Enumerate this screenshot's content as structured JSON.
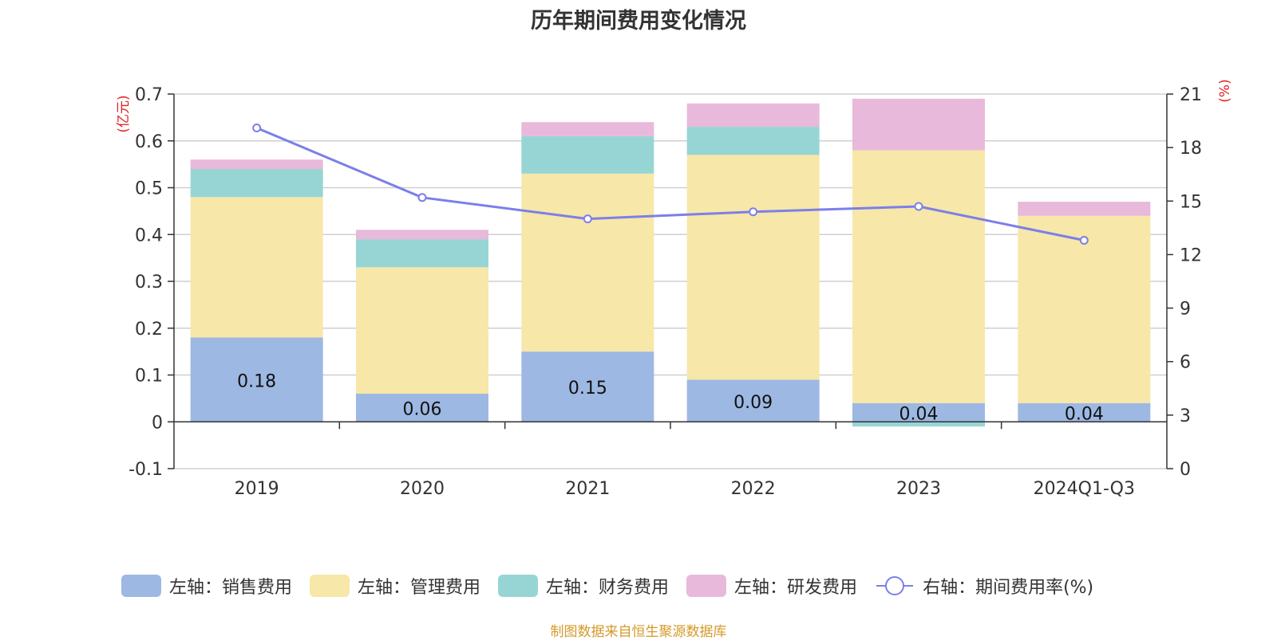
{
  "title": "历年期间费用变化情况",
  "footer": "制图数据来自恒生聚源数据库",
  "chart_data": {
    "type": "bar",
    "stacked": true,
    "categories": [
      "2019",
      "2020",
      "2021",
      "2022",
      "2023",
      "2024Q1-Q3"
    ],
    "left_axis": {
      "unit": "(亿元)",
      "ylim": [
        -0.1,
        0.7
      ],
      "ticks": [
        "-0.1",
        "0",
        "0.1",
        "0.2",
        "0.3",
        "0.4",
        "0.5",
        "0.6",
        "0.7"
      ]
    },
    "right_axis": {
      "unit": "(%)",
      "ylim": [
        0,
        21
      ],
      "ticks": [
        "0",
        "3",
        "6",
        "9",
        "12",
        "15",
        "18",
        "21"
      ]
    },
    "series": [
      {
        "name": "左轴：销售费用",
        "axis": "left",
        "color": "#9db8e2",
        "values": [
          0.18,
          0.06,
          0.15,
          0.09,
          0.04,
          0.04
        ],
        "labels": [
          "0.18",
          "0.06",
          "0.15",
          "0.09",
          "0.04",
          "0.04"
        ]
      },
      {
        "name": "左轴：管理费用",
        "axis": "left",
        "color": "#f7e7a8",
        "values": [
          0.3,
          0.27,
          0.38,
          0.48,
          0.54,
          0.4
        ]
      },
      {
        "name": "左轴：财务费用",
        "axis": "left",
        "color": "#97d5d5",
        "values": [
          0.06,
          0.06,
          0.08,
          0.06,
          -0.01,
          0.0
        ]
      },
      {
        "name": "左轴：研发费用",
        "axis": "left",
        "color": "#e8b9da",
        "values": [
          0.02,
          0.02,
          0.03,
          0.05,
          0.11,
          0.03
        ]
      },
      {
        "name": "右轴：期间费用率(%)",
        "axis": "right",
        "type": "line",
        "color": "#7b7fea",
        "values": [
          19.1,
          15.2,
          14.0,
          14.4,
          14.7,
          12.8
        ]
      }
    ],
    "grid": true,
    "legend_position": "bottom"
  }
}
